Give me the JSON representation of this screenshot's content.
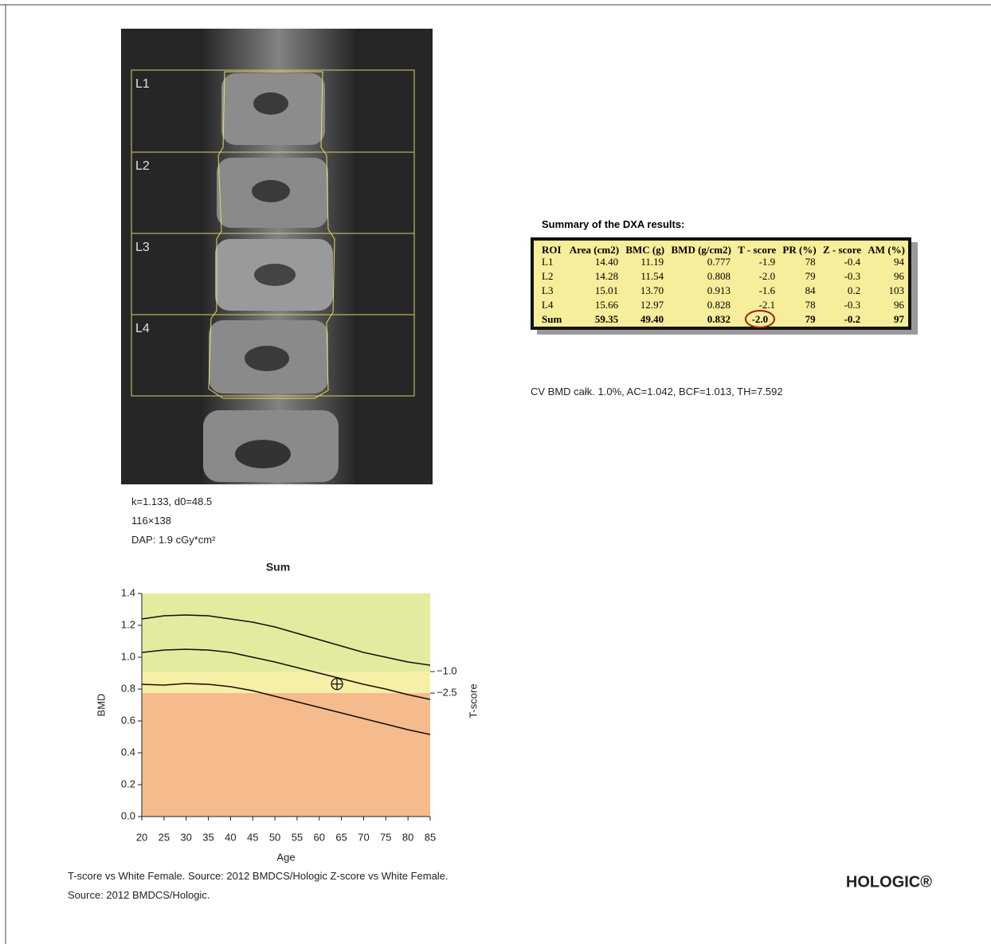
{
  "scan": {
    "labels": [
      "L1",
      "L2",
      "L3",
      "L4"
    ]
  },
  "captions": [
    "k=1.133, d0=48.5",
    "116×138",
    "DAP: 1.9 cGy*cm²"
  ],
  "table": {
    "title": "Summary of the DXA results:",
    "header": [
      "ROI",
      "Area (cm2)",
      "BMC (g)",
      "BMD (g/cm2)",
      "T - score",
      "PR (%)",
      "Z - score",
      "AM (%)"
    ],
    "rows": [
      [
        "L1",
        "14.40",
        "11.19",
        "0.777",
        "-1.9",
        "78",
        "-0.4",
        "94"
      ],
      [
        "L2",
        "14.28",
        "11.54",
        "0.808",
        "-2.0",
        "79",
        "-0.3",
        "96"
      ],
      [
        "L3",
        "15.01",
        "13.70",
        "0.913",
        "-1.6",
        "84",
        "0.2",
        "103"
      ],
      [
        "L4",
        "15.66",
        "12.97",
        "0.828",
        "-2.1",
        "78",
        "-0.3",
        "96"
      ],
      [
        "Sum",
        "59.35",
        "49.40",
        "0.832",
        "-2.0",
        "79",
        "-0.2",
        "97"
      ]
    ],
    "note": "CV BMD całk. 1.0%, AC=1.042, BCF=1.013, TH=7.592"
  },
  "chart_data": {
    "type": "line",
    "title": "Sum",
    "x_label": "Age",
    "y_label": "BMD",
    "y2_label": "T-score",
    "xlim": [
      20,
      85
    ],
    "xticks": [
      20,
      25,
      30,
      35,
      40,
      45,
      50,
      55,
      60,
      65,
      70,
      75,
      80,
      85
    ],
    "ylim": [
      0,
      1.4
    ],
    "yticks": [
      {
        "value": 0,
        "label": "0.0"
      },
      0.2,
      0.4,
      0.6,
      0.8,
      {
        "value": 1,
        "label": "1.0"
      },
      1.2,
      1.4
    ],
    "y2lim": [
      -11.1,
      4.44
    ],
    "y2ticks": [
      {
        "value": -1,
        "label": "−1.0"
      },
      {
        "value": -2.5,
        "label": "−2.5"
      }
    ],
    "band_colors": [
      "#e4eb9e",
      "#f6f0a6",
      "#f5bb8c"
    ],
    "x": [
      20,
      25,
      30,
      35,
      40,
      45,
      50,
      55,
      60,
      65,
      70,
      75,
      80,
      85
    ],
    "series": [
      {
        "color": "#111111",
        "values": [
          1.24,
          1.26,
          1.265,
          1.26,
          1.24,
          1.22,
          1.19,
          1.15,
          1.11,
          1.07,
          1.03,
          1.0,
          0.97,
          0.95
        ]
      },
      {
        "color": "#111111",
        "values": [
          1.03,
          1.045,
          1.05,
          1.045,
          1.03,
          1.0,
          0.97,
          0.935,
          0.9,
          0.865,
          0.83,
          0.8,
          0.765,
          0.735
        ]
      },
      {
        "color": "#111111",
        "values": [
          0.83,
          0.825,
          0.835,
          0.83,
          0.815,
          0.79,
          0.755,
          0.72,
          0.685,
          0.65,
          0.615,
          0.58,
          0.545,
          0.515
        ]
      }
    ],
    "patient": {
      "x": 64,
      "y": 0.832
    }
  },
  "footer": {
    "source": [
      "T-score vs White Female. Source: 2012 BMDCS/Hologic Z-score vs White Female.",
      "Source: 2012 BMDCS/Hologic."
    ],
    "logo": "HOLOGIC®"
  }
}
